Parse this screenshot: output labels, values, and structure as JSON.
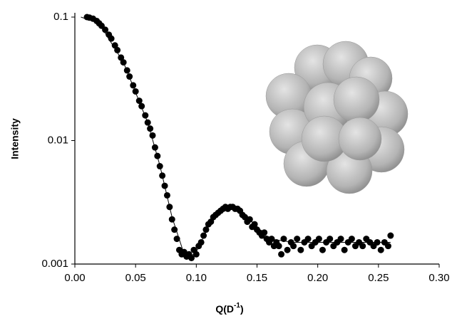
{
  "chart_data": {
    "type": "scatter",
    "x_label": {
      "base": "Q(D",
      "superscript": "-1",
      "close": ")"
    },
    "y_label": "Intensity",
    "xlim": [
      0,
      0.3
    ],
    "xticks": [
      {
        "value": 0,
        "label": "0.00"
      },
      {
        "value": 0.05,
        "label": "0.05"
      },
      {
        "value": 0.1,
        "label": "0.10"
      },
      {
        "value": 0.15,
        "label": "0.15"
      },
      {
        "value": 0.2,
        "label": "0.20"
      },
      {
        "value": 0.25,
        "label": "0.25"
      },
      {
        "value": 0.3,
        "label": "0.30"
      }
    ],
    "ylim": [
      0.001,
      0.1
    ],
    "yticks": [
      0.001,
      0.01,
      0.1
    ],
    "log_y": true,
    "series": [
      {
        "style": "points",
        "color": "#000000",
        "x": [
          0.01,
          0.012,
          0.015,
          0.018,
          0.02,
          0.022,
          0.025,
          0.028,
          0.03,
          0.033,
          0.035,
          0.038,
          0.04,
          0.043,
          0.045,
          0.048,
          0.05,
          0.053,
          0.055,
          0.058,
          0.06,
          0.062,
          0.064,
          0.066,
          0.068,
          0.07,
          0.072,
          0.074,
          0.076,
          0.078,
          0.08,
          0.082,
          0.084,
          0.086,
          0.088,
          0.09,
          0.092,
          0.094,
          0.096,
          0.098,
          0.1,
          0.102,
          0.104,
          0.106,
          0.108,
          0.11,
          0.112,
          0.114,
          0.116,
          0.118,
          0.12,
          0.122,
          0.124,
          0.126,
          0.128,
          0.13,
          0.132,
          0.134,
          0.136,
          0.138,
          0.14,
          0.142,
          0.144,
          0.146,
          0.148,
          0.15,
          0.152,
          0.154,
          0.156,
          0.158,
          0.16,
          0.162,
          0.164,
          0.166,
          0.168,
          0.17,
          0.172,
          0.175,
          0.178,
          0.18,
          0.183,
          0.186,
          0.189,
          0.192,
          0.195,
          0.198,
          0.201,
          0.204,
          0.207,
          0.21,
          0.213,
          0.216,
          0.219,
          0.222,
          0.225,
          0.228,
          0.231,
          0.234,
          0.237,
          0.24,
          0.243,
          0.246,
          0.249,
          0.252,
          0.255,
          0.258,
          0.26
        ],
        "values": [
          0.1,
          0.099,
          0.097,
          0.093,
          0.089,
          0.085,
          0.079,
          0.072,
          0.067,
          0.059,
          0.054,
          0.047,
          0.043,
          0.037,
          0.033,
          0.028,
          0.025,
          0.021,
          0.019,
          0.016,
          0.014,
          0.0125,
          0.011,
          0.0088,
          0.0075,
          0.0062,
          0.0052,
          0.0043,
          0.0036,
          0.0029,
          0.0023,
          0.0019,
          0.0016,
          0.0013,
          0.0012,
          0.00125,
          0.00115,
          0.0012,
          0.00112,
          0.0013,
          0.0012,
          0.0014,
          0.0015,
          0.0017,
          0.0019,
          0.0021,
          0.0022,
          0.0024,
          0.0025,
          0.0026,
          0.0027,
          0.0028,
          0.0029,
          0.0028,
          0.0029,
          0.0029,
          0.0028,
          0.0028,
          0.0027,
          0.0025,
          0.0024,
          0.0022,
          0.0023,
          0.002,
          0.0021,
          0.0019,
          0.0018,
          0.0017,
          0.0018,
          0.0016,
          0.0015,
          0.0016,
          0.0014,
          0.0015,
          0.0014,
          0.0012,
          0.0016,
          0.0013,
          0.0015,
          0.0014,
          0.0016,
          0.0013,
          0.0015,
          0.0016,
          0.0014,
          0.0015,
          0.0016,
          0.0013,
          0.0015,
          0.0016,
          0.0014,
          0.0015,
          0.0016,
          0.0013,
          0.0015,
          0.0016,
          0.0014,
          0.0015,
          0.0014,
          0.0016,
          0.0015,
          0.0014,
          0.0015,
          0.0013,
          0.0015,
          0.0014,
          0.0017
        ]
      },
      {
        "style": "line",
        "color": "#000000",
        "x": [
          0.005,
          0.02,
          0.04,
          0.06,
          0.07,
          0.08,
          0.09,
          0.095,
          0.1,
          0.11,
          0.12,
          0.13,
          0.14,
          0.15,
          0.16,
          0.18,
          0.2,
          0.22,
          0.26
        ],
        "values": [
          0.1,
          0.089,
          0.043,
          0.014,
          0.0063,
          0.0024,
          0.0012,
          0.00115,
          0.00125,
          0.002,
          0.0027,
          0.0029,
          0.0025,
          0.002,
          0.0016,
          0.0015,
          0.0015,
          0.0015,
          0.0015
        ]
      }
    ]
  }
}
